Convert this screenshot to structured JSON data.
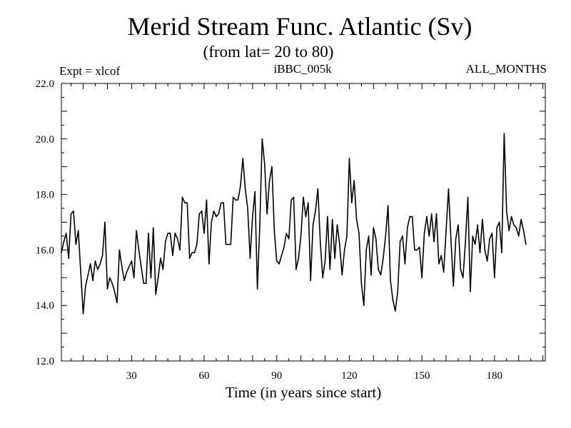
{
  "chart_data": {
    "type": "line",
    "title": "Merid Stream Func. Atlantic (Sv)",
    "subtitle": "(from lat= 20 to 80)",
    "left_label": "Expt = xlcof",
    "center_label": "iBBC_005k",
    "right_label": "ALL_MONTHS",
    "xlabel": "Time (in years since start)",
    "ylabel": "",
    "xlim": [
      1,
      201
    ],
    "ylim": [
      12.0,
      22.0
    ],
    "x_ticks": [
      30,
      60,
      90,
      120,
      150,
      180
    ],
    "y_ticks": [
      "12.0",
      "14.0",
      "16.0",
      "18.0",
      "20.0",
      "22.0"
    ],
    "x_start": 1,
    "x_step": 1,
    "series": [
      {
        "name": "xlcof",
        "values": [
          15.9,
          16.3,
          16.6,
          15.7,
          17.3,
          17.4,
          16.2,
          16.7,
          15.2,
          13.7,
          14.7,
          15.1,
          15.5,
          14.9,
          15.6,
          15.3,
          15.5,
          15.8,
          17.0,
          14.6,
          15.0,
          14.8,
          14.5,
          14.1,
          16.0,
          15.4,
          14.9,
          15.2,
          15.4,
          15.6,
          15.0,
          16.7,
          16.0,
          15.4,
          14.8,
          14.8,
          16.6,
          15.0,
          16.8,
          14.4,
          15.0,
          15.7,
          15.3,
          16.3,
          16.6,
          16.6,
          15.8,
          16.6,
          16.4,
          16.0,
          17.9,
          17.7,
          17.7,
          15.7,
          15.9,
          15.9,
          16.2,
          17.3,
          17.4,
          16.6,
          17.8,
          15.5,
          17.0,
          17.4,
          17.2,
          17.3,
          17.7,
          17.7,
          16.2,
          16.2,
          16.2,
          17.9,
          17.8,
          17.8,
          18.3,
          19.3,
          18.2,
          17.5,
          15.7,
          17.2,
          18.1,
          14.6,
          16.9,
          20.0,
          19.1,
          17.3,
          18.5,
          19.0,
          16.7,
          15.6,
          15.5,
          15.8,
          16.1,
          16.6,
          16.4,
          17.8,
          17.9,
          15.3,
          15.7,
          16.5,
          17.9,
          17.2,
          17.7,
          14.9,
          16.9,
          17.4,
          18.2,
          16.3,
          15.0,
          15.6,
          17.2,
          15.3,
          17.1,
          15.7,
          16.9,
          16.2,
          15.1,
          16.0,
          16.5,
          19.3,
          17.7,
          18.5,
          17.1,
          16.6,
          14.8,
          14.0,
          16.0,
          16.5,
          15.1,
          16.8,
          16.4,
          15.3,
          15.1,
          15.7,
          16.5,
          17.6,
          14.9,
          14.2,
          13.8,
          14.5,
          16.3,
          16.5,
          15.5,
          16.8,
          17.2,
          17.2,
          16.0,
          16.0,
          16.1,
          15.0,
          16.6,
          17.2,
          16.5,
          17.3,
          16.3,
          17.3,
          15.5,
          15.8,
          15.2,
          16.7,
          18.2,
          16.4,
          14.7,
          16.4,
          16.9,
          15.3,
          15.0,
          16.3,
          17.9,
          14.5,
          16.5,
          16.2,
          16.9,
          15.9,
          17.1,
          16.0,
          15.6,
          16.4,
          16.6,
          15.0,
          16.8,
          17.0,
          15.9,
          20.2,
          17.4,
          16.7,
          17.2,
          16.9,
          16.8,
          16.5,
          17.1,
          16.7,
          16.2
        ]
      }
    ]
  }
}
